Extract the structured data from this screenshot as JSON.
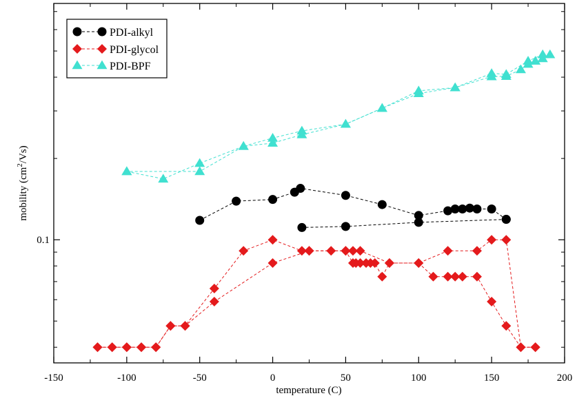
{
  "chart_data": {
    "type": "scatter",
    "title": "",
    "xlabel": "temperature (C)",
    "ylabel_main": "mobility (cm",
    "ylabel_sup": "2",
    "ylabel_tail": "/Vs)",
    "xlim": [
      -150,
      200
    ],
    "ylim": [
      0.035,
      0.75
    ],
    "yscale": "log",
    "x_ticks": [
      -150,
      -100,
      -50,
      0,
      50,
      100,
      150,
      200
    ],
    "x_tick_labels": [
      "-150",
      "-100",
      "-50",
      "0",
      "50",
      "100",
      "150",
      "200"
    ],
    "y_labeled_ticks": [
      0.1
    ],
    "y_tick_labels": [
      "0.1"
    ],
    "y_minor_ticks": [
      0.04,
      0.05,
      0.06,
      0.07,
      0.08,
      0.09,
      0.2,
      0.3,
      0.4,
      0.5,
      0.6,
      0.7
    ],
    "grid": false,
    "legend_position": "top-left",
    "series": [
      {
        "name": "PDI-alkyl",
        "color": "#000000",
        "marker": "circle",
        "segments": [
          {
            "x": [
              -50,
              -25,
              0,
              15,
              19,
              50,
              75,
              100,
              120,
              125,
              130,
              135,
              140,
              150,
              160
            ],
            "y": [
              0.118,
              0.139,
              0.141,
              0.15,
              0.155,
              0.146,
              0.135,
              0.123,
              0.128,
              0.13,
              0.13,
              0.131,
              0.13,
              0.13,
              0.119
            ]
          },
          {
            "x": [
              160,
              100,
              50,
              20
            ],
            "y": [
              0.119,
              0.116,
              0.112,
              0.111
            ]
          }
        ]
      },
      {
        "name": "PDI-glycol",
        "color": "#e41a1c",
        "marker": "diamond",
        "segments": [
          {
            "x": [
              -120,
              -110,
              -100,
              -90,
              -80,
              -70,
              -60,
              -40,
              -20,
              0,
              20,
              25,
              40,
              50,
              55,
              60,
              80,
              100,
              120,
              140,
              150,
              160,
              170,
              180
            ],
            "y": [
              0.04,
              0.04,
              0.04,
              0.04,
              0.04,
              0.048,
              0.048,
              0.066,
              0.091,
              0.1,
              0.091,
              0.091,
              0.091,
              0.091,
              0.091,
              0.091,
              0.082,
              0.082,
              0.091,
              0.091,
              0.1,
              0.1,
              0.04,
              0.04
            ]
          },
          {
            "x": [
              180,
              170,
              160,
              150,
              140,
              130,
              125,
              120,
              110,
              100,
              80,
              75,
              70,
              67,
              64,
              60,
              57,
              55,
              50,
              25,
              0,
              -40,
              -60,
              -70,
              -80,
              -90,
              -100,
              -110,
              -120
            ],
            "y": [
              0.04,
              0.04,
              0.048,
              0.059,
              0.073,
              0.073,
              0.073,
              0.073,
              0.073,
              0.082,
              0.082,
              0.073,
              0.082,
              0.082,
              0.082,
              0.082,
              0.082,
              0.082,
              0.091,
              0.091,
              0.082,
              0.059,
              0.048,
              0.048,
              0.04,
              0.04,
              0.04,
              0.04,
              0.04
            ]
          }
        ]
      },
      {
        "name": "PDI-BPF",
        "color": "#40e0d0",
        "marker": "triangle",
        "segments": [
          {
            "x": [
              -100,
              -75,
              -50,
              -20,
              0,
              20,
              50,
              75,
              100,
              125,
              150,
              160,
              170,
              175,
              180,
              185,
              190
            ],
            "y": [
              0.179,
              0.168,
              0.192,
              0.222,
              0.228,
              0.245,
              0.268,
              0.307,
              0.348,
              0.366,
              0.402,
              0.403,
              0.427,
              0.447,
              0.459,
              0.469,
              0.485
            ]
          },
          {
            "x": [
              185,
              175,
              160,
              150,
              125,
              100,
              75,
              50,
              20,
              0,
              -20,
              -50,
              -100
            ],
            "y": [
              0.485,
              0.459,
              0.41,
              0.413,
              0.366,
              0.356,
              0.307,
              0.268,
              0.253,
              0.238,
              0.222,
              0.179,
              0.179
            ]
          }
        ]
      }
    ]
  }
}
